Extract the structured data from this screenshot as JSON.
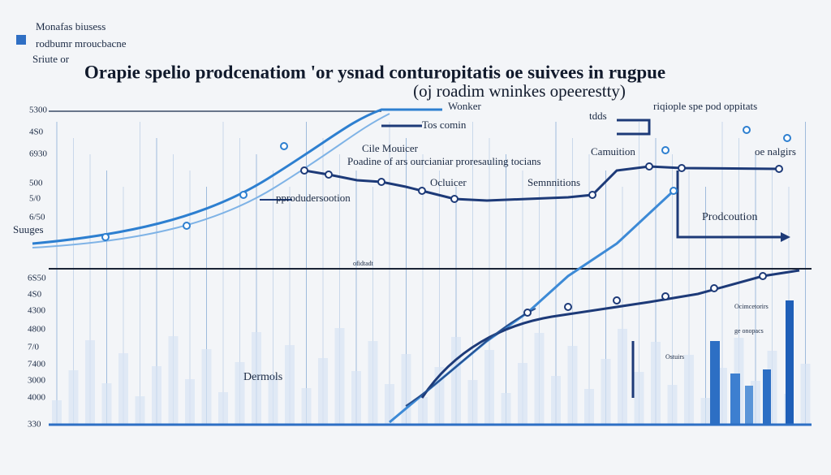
{
  "header": {
    "title": "Orapie spelio prodcenatiom 'or ysnad conturopitatis oe suivees in rugpue",
    "subtitle": "(oj roadim wninkes opeerestty)"
  },
  "legend": [
    "Monafas biusess",
    "rodbumr mroucbacne",
    "Sriute or"
  ],
  "y_labels_top": [
    "5300",
    "4S0",
    "6930",
    "500",
    "5/0",
    "6/50"
  ],
  "side_label": "Suuges",
  "y_labels_bottom": [
    "6S50",
    "4S0",
    "4300",
    "4800",
    "7/0",
    "7400",
    "3000",
    "4000",
    "330"
  ],
  "annotations": [
    "Wonker",
    "Tos comin",
    "Cile Mouicer",
    "Poadine of ars ourcianiar proresauling tocians",
    "pprodudersootion",
    "Ocluicer",
    "Semnnitions",
    "tdds",
    "riqiople spe pod oppitats",
    "Camuition",
    "oe nalgirs",
    "Prodcoution",
    "Dermols",
    "Ocimcetorirs",
    "ge onopacs",
    "ofidtadt",
    "Ostuirs"
  ]
}
